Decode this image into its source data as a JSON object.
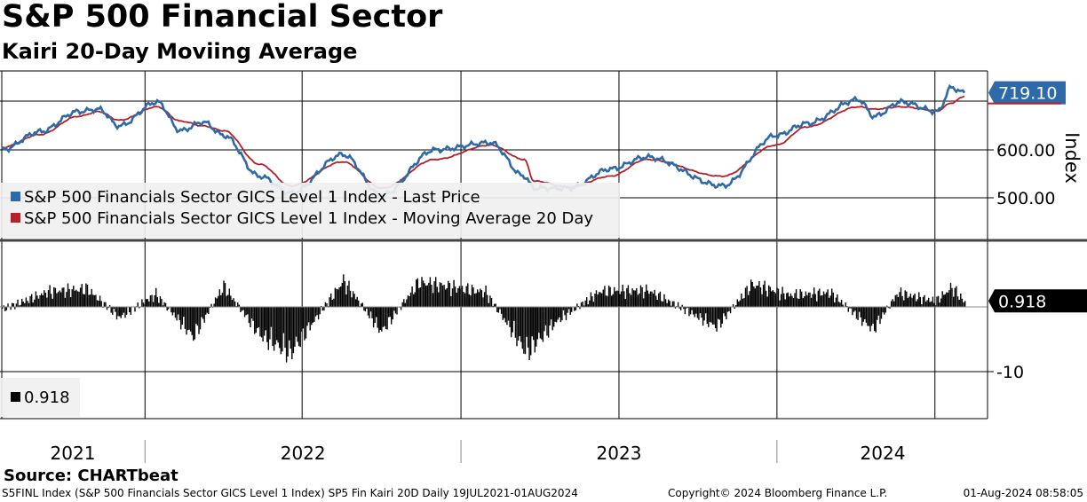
{
  "header": {
    "title": "S&P 500 Financial Sector",
    "subtitle": "Kairi 20-Day Moviing Average"
  },
  "colors": {
    "price_line": "#2e6aa8",
    "ma_line": "#b5202a",
    "kairi_bars": "#000000",
    "axis_divider": "#444444"
  },
  "legend_top": {
    "last_price": "S&P 500 Financials Sector GICS Level 1 Index - Last Price",
    "moving_average": "S&P 500 Financials Sector GICS Level 1 Index - Moving Average 20 Day"
  },
  "legend_bottom": {
    "kairi": "0.918"
  },
  "source": "Source: CHARTbeat",
  "footer": {
    "left": "S5FINL Index (S&P 500 Financials Sector GICS Level 1 Index) SP5 Fin Kairi 20D  Daily 19JUL2021-01AUG2024",
    "middle": "Copyright© 2024 Bloomberg Finance L.P.",
    "right": "01-Aug-2024 08:58:05"
  },
  "chart_data": [
    {
      "type": "line",
      "panel": "upper",
      "ylabel": "Index",
      "y_tick_labels": [
        "600.00",
        "500.00"
      ],
      "ylim": [
        430,
        750
      ],
      "last_value_label": "719.10",
      "x_tick_labels": [
        "2021",
        "2022",
        "2023",
        "2024"
      ],
      "x_range": [
        "2021-07-19",
        "2024-08-01"
      ],
      "grid": true,
      "legend_position": "bottom-left",
      "series": [
        {
          "name": "S&P 500 Financials Sector GICS Level 1 Index - Last Price",
          "x": [
            "2021-07-19",
            "2021-09-01",
            "2021-10-15",
            "2021-11-08",
            "2021-12-01",
            "2022-01-14",
            "2022-02-10",
            "2022-03-08",
            "2022-04-01",
            "2022-05-12",
            "2022-06-17",
            "2022-08-16",
            "2022-09-30",
            "2022-11-30",
            "2023-02-02",
            "2023-03-13",
            "2023-03-24",
            "2023-05-04",
            "2023-06-20",
            "2023-08-01",
            "2023-10-27",
            "2023-12-28",
            "2024-02-01",
            "2024-04-01",
            "2024-04-19",
            "2024-05-20",
            "2024-07-01",
            "2024-07-17",
            "2024-08-01"
          ],
          "y": [
            600,
            638,
            680,
            685,
            650,
            700,
            640,
            658,
            630,
            545,
            510,
            590,
            505,
            600,
            615,
            545,
            520,
            520,
            560,
            585,
            525,
            630,
            655,
            705,
            670,
            700,
            680,
            730,
            719.1
          ]
        },
        {
          "name": "S&P 500 Financials Sector GICS Level 1 Index - Moving Average 20 Day",
          "x": [
            "2021-07-19",
            "2021-09-01",
            "2021-10-15",
            "2021-11-08",
            "2021-12-01",
            "2022-01-14",
            "2022-02-10",
            "2022-03-08",
            "2022-04-01",
            "2022-05-12",
            "2022-06-17",
            "2022-08-16",
            "2022-09-30",
            "2022-11-30",
            "2023-02-02",
            "2023-03-13",
            "2023-03-24",
            "2023-05-04",
            "2023-06-20",
            "2023-08-01",
            "2023-10-27",
            "2023-12-28",
            "2024-02-01",
            "2024-04-01",
            "2024-04-19",
            "2024-05-20",
            "2024-07-01",
            "2024-07-17",
            "2024-08-01"
          ],
          "y": [
            605,
            632,
            670,
            680,
            662,
            690,
            660,
            650,
            640,
            570,
            525,
            575,
            520,
            580,
            610,
            580,
            535,
            522,
            545,
            580,
            545,
            610,
            648,
            690,
            685,
            690,
            682,
            698,
            712
          ]
        }
      ]
    },
    {
      "type": "bar",
      "panel": "lower",
      "name": "Kairi 20D",
      "y_tick_labels": [
        "-10"
      ],
      "ylim": [
        -16,
        8
      ],
      "last_value_label": "0.918",
      "x": [
        "2021-07-19",
        "2021-09-10",
        "2021-10-25",
        "2021-12-01",
        "2022-01-12",
        "2022-02-24",
        "2022-03-31",
        "2022-05-12",
        "2022-06-16",
        "2022-08-16",
        "2022-09-29",
        "2022-11-11",
        "2023-01-27",
        "2023-03-15",
        "2023-04-20",
        "2023-06-08",
        "2023-08-03",
        "2023-10-20",
        "2023-11-30",
        "2024-01-10",
        "2024-02-28",
        "2024-04-17",
        "2024-05-16",
        "2024-06-28",
        "2024-07-17",
        "2024-08-01"
      ],
      "values": [
        -0.5,
        2.8,
        3.3,
        -2.0,
        2.3,
        -5.5,
        3.8,
        -5.2,
        -8.5,
        4.8,
        -4.6,
        4.6,
        2.7,
        -8.4,
        -2.5,
        2.9,
        3.0,
        -3.7,
        4.2,
        2.2,
        2.6,
        -4.2,
        2.6,
        1.0,
        3.6,
        0.918
      ]
    }
  ]
}
